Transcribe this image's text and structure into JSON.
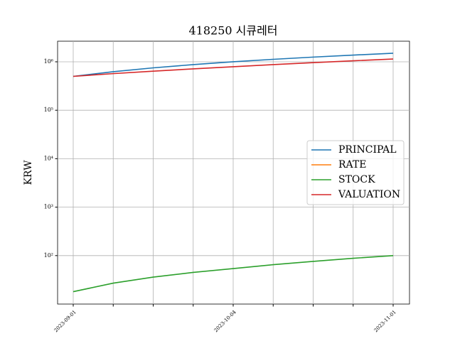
{
  "chart_data": {
    "type": "line",
    "title": "418250 시큐레터",
    "y_label": "KRW",
    "categories": [
      "2023-09-01",
      null,
      null,
      null,
      "2023-10-04",
      null,
      null,
      null,
      "2023-11-01"
    ],
    "series": [
      {
        "name": "PRINCIPAL",
        "color": "#1f77b4",
        "values": [
          500000,
          625000,
          750000,
          875000,
          1000000,
          1125000,
          1250000,
          1375000,
          1500000
        ]
      },
      {
        "name": "RATE",
        "color": "#ff7f0e",
        "values": [
          null,
          null,
          null,
          null,
          null,
          null,
          null,
          null,
          null
        ]
      },
      {
        "name": "STOCK",
        "color": "#2ca02c",
        "values": [
          18,
          27,
          36,
          45,
          54,
          65,
          76,
          88,
          100
        ]
      },
      {
        "name": "VALUATION",
        "color": "#d62728",
        "values": [
          500000,
          570000,
          640000,
          715000,
          790000,
          875000,
          960000,
          1050000,
          1140000
        ]
      }
    ],
    "log_y": true,
    "ylim": [
      10,
      2660000
    ],
    "yticks": [
      {
        "value": 100,
        "label": "10²"
      },
      {
        "value": 1000,
        "label": "10³"
      },
      {
        "value": 10000,
        "label": "10⁴"
      },
      {
        "value": 100000,
        "label": "10⁵"
      },
      {
        "value": 1000000,
        "label": "10⁶"
      }
    ],
    "grid": true,
    "legend": "center right"
  }
}
